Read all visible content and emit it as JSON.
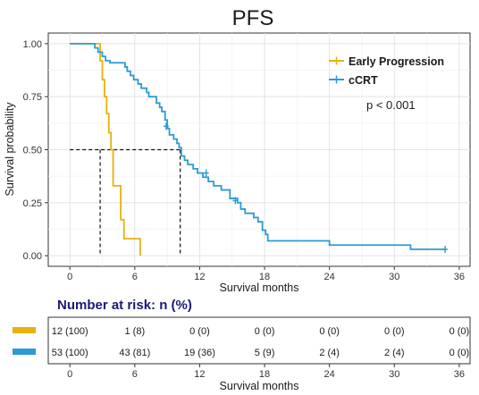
{
  "chart_data": {
    "type": "line",
    "subtype": "kaplan-meier",
    "title": "PFS",
    "xlabel": "Survival months",
    "ylabel": "Survival probability",
    "xlim": [
      -2,
      37
    ],
    "ylim": [
      -0.05,
      1.05
    ],
    "x_ticks": [
      0,
      6,
      12,
      18,
      24,
      30,
      36
    ],
    "x_tick_labels": [
      "0",
      "6",
      "12",
      "18",
      "24",
      "30",
      "36"
    ],
    "y_ticks": [
      0,
      0.25,
      0.5,
      0.75,
      1.0
    ],
    "y_tick_labels": [
      "0.00",
      "0.25",
      "0.50",
      "0.75",
      "1.00"
    ],
    "grid": true,
    "legend_position": "top-right",
    "p_value": "p < 0.001",
    "median_lines": [
      {
        "survival": 0.5,
        "x": 2.8
      },
      {
        "survival": 0.5,
        "x": 10.2
      }
    ],
    "series": [
      {
        "name": "Early Progression",
        "color": "#e8b10c",
        "steps": [
          [
            0,
            1.0
          ],
          [
            2.8,
            1.0
          ],
          [
            2.8,
            0.92
          ],
          [
            3.0,
            0.92
          ],
          [
            3.0,
            0.83
          ],
          [
            3.2,
            0.83
          ],
          [
            3.2,
            0.75
          ],
          [
            3.4,
            0.75
          ],
          [
            3.4,
            0.67
          ],
          [
            3.6,
            0.67
          ],
          [
            3.6,
            0.58
          ],
          [
            3.8,
            0.58
          ],
          [
            3.8,
            0.5
          ],
          [
            4.0,
            0.5
          ],
          [
            4.0,
            0.33
          ],
          [
            4.7,
            0.33
          ],
          [
            4.7,
            0.17
          ],
          [
            5.0,
            0.17
          ],
          [
            5.0,
            0.08
          ],
          [
            6.5,
            0.08
          ],
          [
            6.5,
            0.0
          ]
        ],
        "censored": []
      },
      {
        "name": "cCRT",
        "color": "#2b9bd6",
        "steps": [
          [
            0,
            1.0
          ],
          [
            2.3,
            1.0
          ],
          [
            2.3,
            0.98
          ],
          [
            2.6,
            0.98
          ],
          [
            2.6,
            0.96
          ],
          [
            3.0,
            0.96
          ],
          [
            3.0,
            0.94
          ],
          [
            3.3,
            0.94
          ],
          [
            3.3,
            0.92
          ],
          [
            3.7,
            0.92
          ],
          [
            3.7,
            0.91
          ],
          [
            5.1,
            0.91
          ],
          [
            5.1,
            0.89
          ],
          [
            5.3,
            0.89
          ],
          [
            5.3,
            0.87
          ],
          [
            5.6,
            0.87
          ],
          [
            5.6,
            0.85
          ],
          [
            5.9,
            0.85
          ],
          [
            5.9,
            0.83
          ],
          [
            6.3,
            0.83
          ],
          [
            6.3,
            0.81
          ],
          [
            6.6,
            0.81
          ],
          [
            6.6,
            0.79
          ],
          [
            7.1,
            0.79
          ],
          [
            7.1,
            0.77
          ],
          [
            7.3,
            0.77
          ],
          [
            7.3,
            0.75
          ],
          [
            8.0,
            0.75
          ],
          [
            8.0,
            0.72
          ],
          [
            8.3,
            0.72
          ],
          [
            8.3,
            0.7
          ],
          [
            8.5,
            0.7
          ],
          [
            8.5,
            0.68
          ],
          [
            8.8,
            0.68
          ],
          [
            8.8,
            0.64
          ],
          [
            9.0,
            0.64
          ],
          [
            9.0,
            0.6
          ],
          [
            9.2,
            0.6
          ],
          [
            9.2,
            0.57
          ],
          [
            9.6,
            0.57
          ],
          [
            9.6,
            0.55
          ],
          [
            9.9,
            0.55
          ],
          [
            9.9,
            0.53
          ],
          [
            10.1,
            0.53
          ],
          [
            10.1,
            0.51
          ],
          [
            10.3,
            0.51
          ],
          [
            10.3,
            0.47
          ],
          [
            10.6,
            0.47
          ],
          [
            10.6,
            0.45
          ],
          [
            10.9,
            0.45
          ],
          [
            10.9,
            0.43
          ],
          [
            11.4,
            0.43
          ],
          [
            11.4,
            0.41
          ],
          [
            11.8,
            0.41
          ],
          [
            11.8,
            0.39
          ],
          [
            12.3,
            0.39
          ],
          [
            12.3,
            0.37
          ],
          [
            12.8,
            0.37
          ],
          [
            12.8,
            0.35
          ],
          [
            13.3,
            0.35
          ],
          [
            13.3,
            0.33
          ],
          [
            14.0,
            0.33
          ],
          [
            14.0,
            0.31
          ],
          [
            14.8,
            0.31
          ],
          [
            14.8,
            0.27
          ],
          [
            15.5,
            0.27
          ],
          [
            15.5,
            0.25
          ],
          [
            15.8,
            0.25
          ],
          [
            15.8,
            0.22
          ],
          [
            16.2,
            0.22
          ],
          [
            16.2,
            0.2
          ],
          [
            17.0,
            0.2
          ],
          [
            17.0,
            0.18
          ],
          [
            17.4,
            0.18
          ],
          [
            17.4,
            0.16
          ],
          [
            17.8,
            0.16
          ],
          [
            17.8,
            0.12
          ],
          [
            18.1,
            0.12
          ],
          [
            18.1,
            0.1
          ],
          [
            18.3,
            0.1
          ],
          [
            18.3,
            0.07
          ],
          [
            24.0,
            0.07
          ],
          [
            24.0,
            0.05
          ],
          [
            31.5,
            0.05
          ],
          [
            31.5,
            0.03
          ],
          [
            34.7,
            0.03
          ]
        ],
        "censored": [
          [
            8.9,
            0.61
          ],
          [
            12.6,
            0.39
          ],
          [
            15.3,
            0.26
          ],
          [
            34.7,
            0.03
          ]
        ]
      }
    ]
  },
  "risk_table": {
    "title": "Number at risk: n (%)",
    "xlabel": "Survival months",
    "times": [
      0,
      6,
      12,
      18,
      24,
      30,
      36
    ],
    "time_labels": [
      "0",
      "6",
      "12",
      "18",
      "24",
      "30",
      "36"
    ],
    "rows": [
      {
        "series": "Early Progression",
        "color": "#e8b10c",
        "cells": [
          "12 (100)",
          "1 (8)",
          "0 (0)",
          "0 (0)",
          "0 (0)",
          "0 (0)",
          "0 (0)"
        ]
      },
      {
        "series": "cCRT",
        "color": "#2b9bd6",
        "cells": [
          "53 (100)",
          "43 (81)",
          "19 (36)",
          "5 (9)",
          "2 (4)",
          "2 (4)",
          "0 (0)"
        ]
      }
    ]
  }
}
